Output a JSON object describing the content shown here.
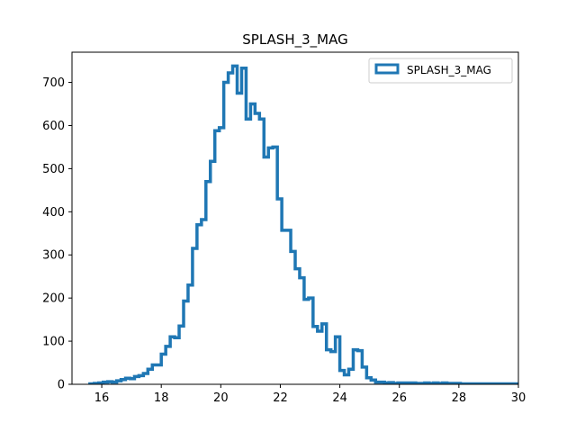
{
  "chart_data": {
    "type": "histogram-step",
    "title": "SPLASH_3_MAG",
    "xlabel": "",
    "ylabel": "",
    "xlim": [
      15.0,
      30.0
    ],
    "ylim": [
      0,
      770
    ],
    "x_ticks": [
      16,
      18,
      20,
      22,
      24,
      26,
      28,
      30
    ],
    "y_ticks": [
      0,
      100,
      200,
      300,
      400,
      500,
      600,
      700
    ],
    "grid": false,
    "legend": {
      "placement": "top-right",
      "entries": [
        "SPLASH_3_MAG"
      ]
    },
    "series": [
      {
        "name": "SPLASH_3_MAG",
        "color": "#1f77b4",
        "bin_edges": [
          15.6,
          15.75,
          15.9,
          16.05,
          16.2,
          16.35,
          16.5,
          16.65,
          16.8,
          16.95,
          17.1,
          17.25,
          17.4,
          17.55,
          17.7,
          17.85,
          18.0,
          18.15,
          18.3,
          18.45,
          18.6,
          18.75,
          18.9,
          19.05,
          19.2,
          19.35,
          19.5,
          19.65,
          19.8,
          19.95,
          20.1,
          20.25,
          20.4,
          20.55,
          20.7,
          20.85,
          21.0,
          21.15,
          21.3,
          21.45,
          21.6,
          21.75,
          21.9,
          22.05,
          22.2,
          22.35,
          22.5,
          22.65,
          22.8,
          22.95,
          23.1,
          23.25,
          23.4,
          23.55,
          23.7,
          23.85,
          24.0,
          24.15,
          24.3,
          24.45,
          24.6,
          24.75,
          24.9,
          25.05,
          25.2,
          25.35,
          25.5,
          25.65,
          25.8,
          25.95,
          26.1,
          26.25,
          26.4,
          26.55,
          26.7,
          26.85,
          27.0,
          27.15,
          27.3,
          27.45,
          27.6,
          27.75,
          27.9,
          28.05,
          28.2,
          28.35,
          28.5,
          28.65,
          28.8,
          28.95,
          29.1,
          29.25,
          29.4,
          29.55,
          29.7,
          29.85,
          30.0
        ],
        "counts": [
          1,
          2,
          3,
          5,
          6,
          5,
          8,
          11,
          14,
          13,
          18,
          20,
          25,
          35,
          45,
          45,
          70,
          88,
          110,
          108,
          135,
          193,
          230,
          315,
          370,
          382,
          470,
          517,
          588,
          595,
          700,
          722,
          738,
          675,
          733,
          615,
          650,
          628,
          615,
          527,
          548,
          550,
          430,
          357,
          357,
          308,
          268,
          247,
          197,
          200,
          134,
          123,
          140,
          80,
          76,
          110,
          32,
          22,
          35,
          80,
          78,
          40,
          15,
          10,
          5,
          5,
          3,
          4,
          2,
          3,
          3,
          3,
          3,
          2,
          2,
          3,
          2,
          3,
          2,
          3,
          2,
          2,
          2,
          1,
          1,
          1,
          1,
          1,
          1,
          1,
          1,
          1,
          1,
          1,
          1,
          1
        ]
      }
    ]
  }
}
